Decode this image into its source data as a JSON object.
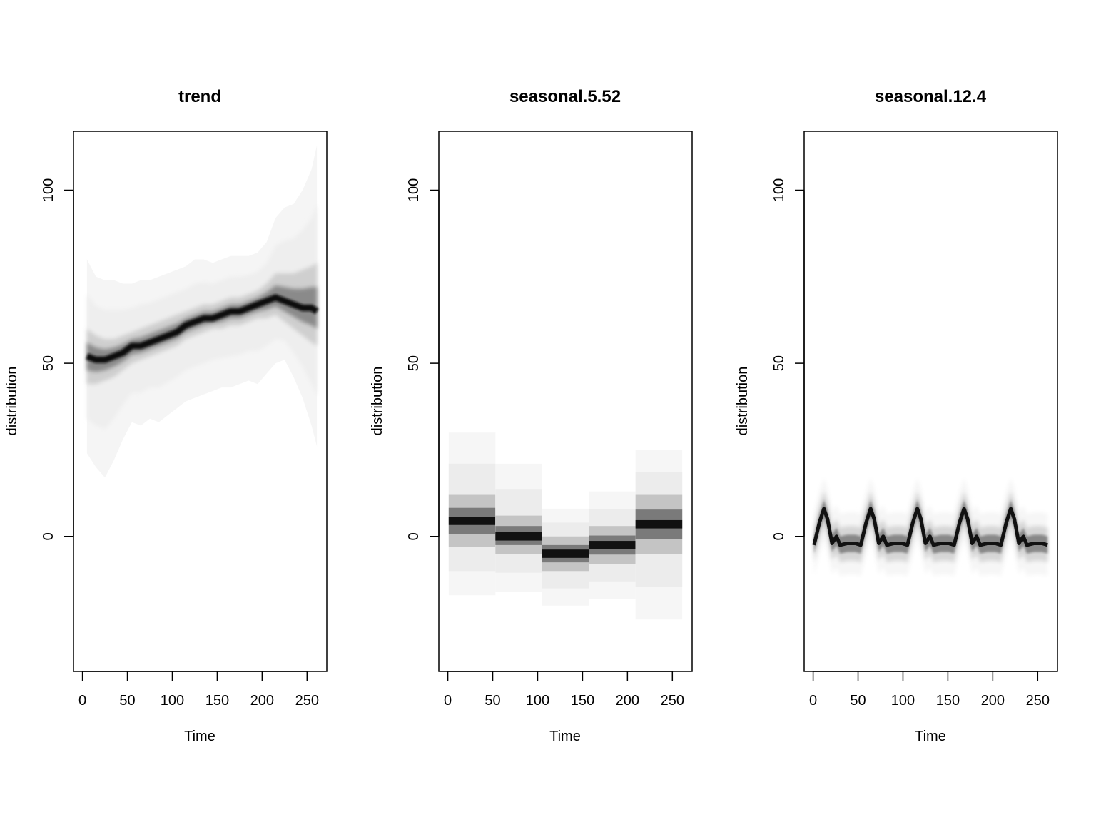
{
  "chart_data": [
    {
      "type": "heatmap",
      "title": "trend",
      "xlabel": "Time",
      "ylabel": "distribution",
      "xlim": [
        -10,
        272
      ],
      "ylim": [
        -39,
        117
      ],
      "xticks": [
        0,
        50,
        100,
        150,
        200,
        250
      ],
      "yticks": [
        0,
        50,
        100
      ],
      "grid": false,
      "style": "smooth",
      "median": {
        "x": [
          5,
          15,
          25,
          35,
          45,
          55,
          65,
          75,
          85,
          95,
          105,
          115,
          125,
          135,
          145,
          155,
          165,
          175,
          185,
          195,
          205,
          215,
          225,
          235,
          245,
          255,
          261
        ],
        "y": [
          52,
          51,
          51,
          52,
          53,
          55,
          55,
          56,
          57,
          58,
          59,
          61,
          62,
          63,
          63,
          64,
          65,
          65,
          66,
          67,
          68,
          69,
          68,
          67,
          66,
          66,
          65
        ]
      },
      "inner_band": {
        "lower": [
          44,
          44,
          45,
          46,
          48,
          50,
          51,
          52,
          53,
          54,
          55,
          57,
          58,
          59,
          60,
          60,
          61,
          61,
          62,
          63,
          63,
          64,
          62,
          60,
          58,
          56,
          55
        ],
        "upper": [
          60,
          58,
          57,
          57,
          58,
          59,
          60,
          61,
          62,
          63,
          64,
          65,
          66,
          67,
          67,
          68,
          69,
          69,
          70,
          71,
          73,
          76,
          76,
          76,
          77,
          78,
          79
        ]
      },
      "outer_band": {
        "lower": [
          24,
          20,
          17,
          22,
          28,
          33,
          32,
          34,
          33,
          35,
          37,
          39,
          40,
          41,
          42,
          43,
          43,
          44,
          45,
          44,
          47,
          50,
          51,
          46,
          40,
          32,
          26
        ],
        "upper": [
          80,
          75,
          74,
          74,
          73,
          73,
          74,
          74,
          75,
          76,
          77,
          78,
          80,
          80,
          79,
          80,
          81,
          81,
          81,
          82,
          85,
          92,
          95,
          96,
          100,
          106,
          113
        ]
      }
    },
    {
      "type": "heatmap",
      "title": "seasonal.5.52",
      "xlabel": "Time",
      "ylabel": "distribution",
      "xlim": [
        -10,
        272
      ],
      "ylim": [
        -39,
        117
      ],
      "xticks": [
        0,
        50,
        100,
        150,
        200,
        250
      ],
      "yticks": [
        0,
        50,
        100
      ],
      "grid": false,
      "style": "step",
      "segments": [
        {
          "x": [
            1,
            53
          ],
          "median": 4.5,
          "inner": [
            -3,
            12
          ],
          "outer": [
            -17,
            30
          ]
        },
        {
          "x": [
            53,
            105
          ],
          "median": 0,
          "inner": [
            -5,
            6
          ],
          "outer": [
            -16,
            21
          ]
        },
        {
          "x": [
            105,
            157
          ],
          "median": -5,
          "inner": [
            -10,
            0
          ],
          "outer": [
            -20,
            8
          ]
        },
        {
          "x": [
            157,
            209
          ],
          "median": -2.5,
          "inner": [
            -8,
            3
          ],
          "outer": [
            -18,
            13
          ]
        },
        {
          "x": [
            209,
            261
          ],
          "median": 3.5,
          "inner": [
            -5,
            12
          ],
          "outer": [
            -24,
            25
          ]
        }
      ]
    },
    {
      "type": "heatmap",
      "title": "seasonal.12.4",
      "xlabel": "Time",
      "ylabel": "distribution",
      "xlim": [
        -10,
        272
      ],
      "ylim": [
        -39,
        117
      ],
      "xticks": [
        0,
        50,
        100,
        150,
        200,
        250
      ],
      "yticks": [
        0,
        50,
        100
      ],
      "grid": false,
      "style": "periodic",
      "period": 52,
      "x_start": 1,
      "x_end": 261,
      "cycle": [
        {
          "x": 1,
          "y": -2.5
        },
        {
          "x": 7,
          "y": 4
        },
        {
          "x": 12,
          "y": 8
        },
        {
          "x": 16,
          "y": 5
        },
        {
          "x": 21,
          "y": -2
        },
        {
          "x": 26,
          "y": 0
        },
        {
          "x": 30,
          "y": -2.5
        },
        {
          "x": 38,
          "y": -2
        },
        {
          "x": 47,
          "y": -2
        },
        {
          "x": 53,
          "y": -2.5
        }
      ],
      "inner_halfwidth": 2.5,
      "outer_halfwidth": 9
    }
  ]
}
